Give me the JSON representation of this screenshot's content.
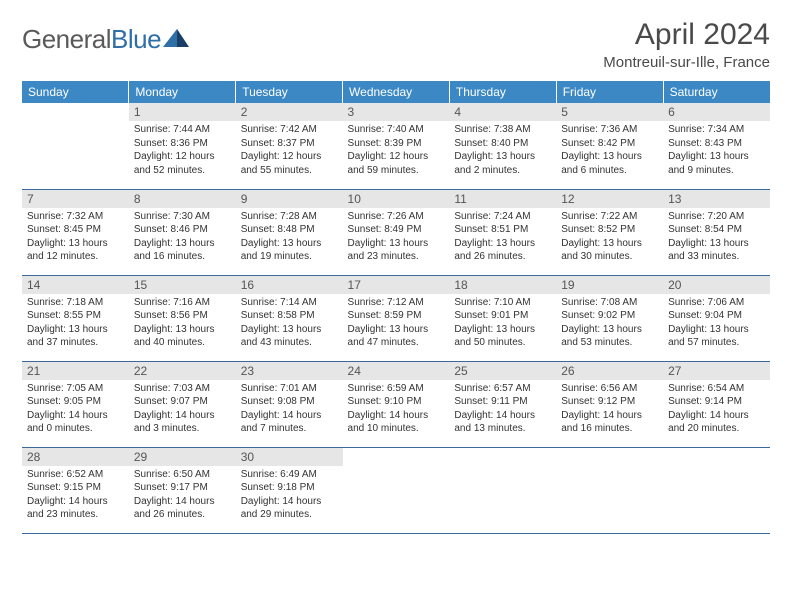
{
  "brand": {
    "name_part1": "General",
    "name_part2": "Blue"
  },
  "title": "April 2024",
  "location": "Montreuil-sur-Ille, France",
  "colors": {
    "header_bg": "#3b88c4",
    "header_fg": "#ffffff",
    "row_border": "#3b6a9a",
    "daynum_bg": "#e6e6e6",
    "text": "#333333",
    "brand_gray": "#5a5a5a",
    "brand_blue": "#2f6fa8"
  },
  "weekdays": [
    "Sunday",
    "Monday",
    "Tuesday",
    "Wednesday",
    "Thursday",
    "Friday",
    "Saturday"
  ],
  "start_offset": 1,
  "days": [
    {
      "n": 1,
      "sunrise": "7:44 AM",
      "sunset": "8:36 PM",
      "daylight": "12 hours and 52 minutes."
    },
    {
      "n": 2,
      "sunrise": "7:42 AM",
      "sunset": "8:37 PM",
      "daylight": "12 hours and 55 minutes."
    },
    {
      "n": 3,
      "sunrise": "7:40 AM",
      "sunset": "8:39 PM",
      "daylight": "12 hours and 59 minutes."
    },
    {
      "n": 4,
      "sunrise": "7:38 AM",
      "sunset": "8:40 PM",
      "daylight": "13 hours and 2 minutes."
    },
    {
      "n": 5,
      "sunrise": "7:36 AM",
      "sunset": "8:42 PM",
      "daylight": "13 hours and 6 minutes."
    },
    {
      "n": 6,
      "sunrise": "7:34 AM",
      "sunset": "8:43 PM",
      "daylight": "13 hours and 9 minutes."
    },
    {
      "n": 7,
      "sunrise": "7:32 AM",
      "sunset": "8:45 PM",
      "daylight": "13 hours and 12 minutes."
    },
    {
      "n": 8,
      "sunrise": "7:30 AM",
      "sunset": "8:46 PM",
      "daylight": "13 hours and 16 minutes."
    },
    {
      "n": 9,
      "sunrise": "7:28 AM",
      "sunset": "8:48 PM",
      "daylight": "13 hours and 19 minutes."
    },
    {
      "n": 10,
      "sunrise": "7:26 AM",
      "sunset": "8:49 PM",
      "daylight": "13 hours and 23 minutes."
    },
    {
      "n": 11,
      "sunrise": "7:24 AM",
      "sunset": "8:51 PM",
      "daylight": "13 hours and 26 minutes."
    },
    {
      "n": 12,
      "sunrise": "7:22 AM",
      "sunset": "8:52 PM",
      "daylight": "13 hours and 30 minutes."
    },
    {
      "n": 13,
      "sunrise": "7:20 AM",
      "sunset": "8:54 PM",
      "daylight": "13 hours and 33 minutes."
    },
    {
      "n": 14,
      "sunrise": "7:18 AM",
      "sunset": "8:55 PM",
      "daylight": "13 hours and 37 minutes."
    },
    {
      "n": 15,
      "sunrise": "7:16 AM",
      "sunset": "8:56 PM",
      "daylight": "13 hours and 40 minutes."
    },
    {
      "n": 16,
      "sunrise": "7:14 AM",
      "sunset": "8:58 PM",
      "daylight": "13 hours and 43 minutes."
    },
    {
      "n": 17,
      "sunrise": "7:12 AM",
      "sunset": "8:59 PM",
      "daylight": "13 hours and 47 minutes."
    },
    {
      "n": 18,
      "sunrise": "7:10 AM",
      "sunset": "9:01 PM",
      "daylight": "13 hours and 50 minutes."
    },
    {
      "n": 19,
      "sunrise": "7:08 AM",
      "sunset": "9:02 PM",
      "daylight": "13 hours and 53 minutes."
    },
    {
      "n": 20,
      "sunrise": "7:06 AM",
      "sunset": "9:04 PM",
      "daylight": "13 hours and 57 minutes."
    },
    {
      "n": 21,
      "sunrise": "7:05 AM",
      "sunset": "9:05 PM",
      "daylight": "14 hours and 0 minutes."
    },
    {
      "n": 22,
      "sunrise": "7:03 AM",
      "sunset": "9:07 PM",
      "daylight": "14 hours and 3 minutes."
    },
    {
      "n": 23,
      "sunrise": "7:01 AM",
      "sunset": "9:08 PM",
      "daylight": "14 hours and 7 minutes."
    },
    {
      "n": 24,
      "sunrise": "6:59 AM",
      "sunset": "9:10 PM",
      "daylight": "14 hours and 10 minutes."
    },
    {
      "n": 25,
      "sunrise": "6:57 AM",
      "sunset": "9:11 PM",
      "daylight": "14 hours and 13 minutes."
    },
    {
      "n": 26,
      "sunrise": "6:56 AM",
      "sunset": "9:12 PM",
      "daylight": "14 hours and 16 minutes."
    },
    {
      "n": 27,
      "sunrise": "6:54 AM",
      "sunset": "9:14 PM",
      "daylight": "14 hours and 20 minutes."
    },
    {
      "n": 28,
      "sunrise": "6:52 AM",
      "sunset": "9:15 PM",
      "daylight": "14 hours and 23 minutes."
    },
    {
      "n": 29,
      "sunrise": "6:50 AM",
      "sunset": "9:17 PM",
      "daylight": "14 hours and 26 minutes."
    },
    {
      "n": 30,
      "sunrise": "6:49 AM",
      "sunset": "9:18 PM",
      "daylight": "14 hours and 29 minutes."
    }
  ]
}
